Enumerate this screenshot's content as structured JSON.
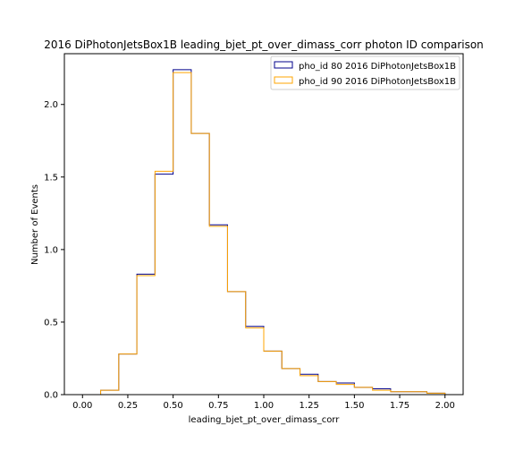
{
  "chart_data": {
    "type": "histogram",
    "title": "2016 DiPhotonJetsBox1B leading_bjet_pt_over_dimass_corr photon ID comparison",
    "xlabel": "leading_bjet_pt_over_dimass_corr",
    "ylabel": "Number of Events",
    "xlim": [
      -0.1,
      2.1
    ],
    "ylim": [
      0,
      2.35
    ],
    "grid": false,
    "legend_position": "upper right",
    "x_ticks": [
      "0.00",
      "0.25",
      "0.50",
      "0.75",
      "1.00",
      "1.25",
      "1.50",
      "1.75",
      "2.00"
    ],
    "y_ticks": [
      "0.0",
      "0.5",
      "1.0",
      "1.5",
      "2.0"
    ],
    "bin_edges": [
      0.0,
      0.1,
      0.2,
      0.3,
      0.4,
      0.5,
      0.6,
      0.7,
      0.8,
      0.9,
      1.0,
      1.1,
      1.2,
      1.3,
      1.4,
      1.5,
      1.6,
      1.7,
      1.8,
      1.9,
      2.0
    ],
    "series": [
      {
        "name": "pho_id 80 2016 DiPhotonJetsBox1B",
        "color": "#00008b",
        "values": [
          0.0,
          0.03,
          0.28,
          0.83,
          1.52,
          2.24,
          1.8,
          1.17,
          0.71,
          0.47,
          0.3,
          0.18,
          0.14,
          0.09,
          0.08,
          0.05,
          0.04,
          0.02,
          0.02,
          0.01
        ]
      },
      {
        "name": "pho_id 90 2016 DiPhotonJetsBox1B",
        "color": "#ffa500",
        "values": [
          0.0,
          0.03,
          0.28,
          0.82,
          1.54,
          2.22,
          1.8,
          1.16,
          0.71,
          0.46,
          0.3,
          0.18,
          0.13,
          0.09,
          0.07,
          0.05,
          0.03,
          0.02,
          0.02,
          0.01
        ]
      }
    ]
  }
}
